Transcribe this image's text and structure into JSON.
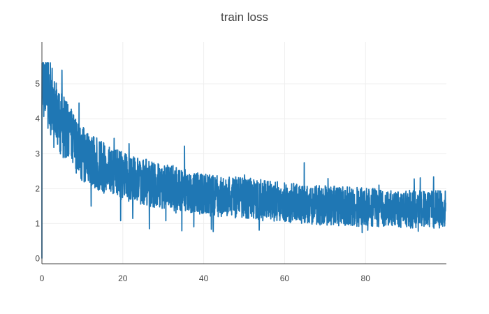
{
  "chart_data": {
    "type": "line",
    "title": "train loss",
    "xlabel": "",
    "ylabel": "",
    "xlim": [
      0,
      100
    ],
    "ylim": [
      -0.15,
      6.2
    ],
    "x_ticks": [
      0,
      20,
      40,
      60,
      80
    ],
    "y_ticks": [
      0,
      1,
      2,
      3,
      4,
      5
    ],
    "grid": true,
    "legend": "none",
    "series": [
      {
        "color": "#1f77b4",
        "x_range": [
          0,
          99.8
        ],
        "approx_mean_envelope": [
          {
            "x": 0,
            "mean": 5.3
          },
          {
            "x": 2,
            "mean": 4.6
          },
          {
            "x": 5,
            "mean": 3.8
          },
          {
            "x": 10,
            "mean": 3.0
          },
          {
            "x": 15,
            "mean": 2.6
          },
          {
            "x": 20,
            "mean": 2.35
          },
          {
            "x": 30,
            "mean": 2.05
          },
          {
            "x": 40,
            "mean": 1.85
          },
          {
            "x": 50,
            "mean": 1.72
          },
          {
            "x": 60,
            "mean": 1.6
          },
          {
            "x": 70,
            "mean": 1.52
          },
          {
            "x": 80,
            "mean": 1.47
          },
          {
            "x": 90,
            "mean": 1.42
          },
          {
            "x": 100,
            "mean": 1.4
          }
        ],
        "start_drop_to": 0.0,
        "max_value": 5.6
      }
    ]
  }
}
